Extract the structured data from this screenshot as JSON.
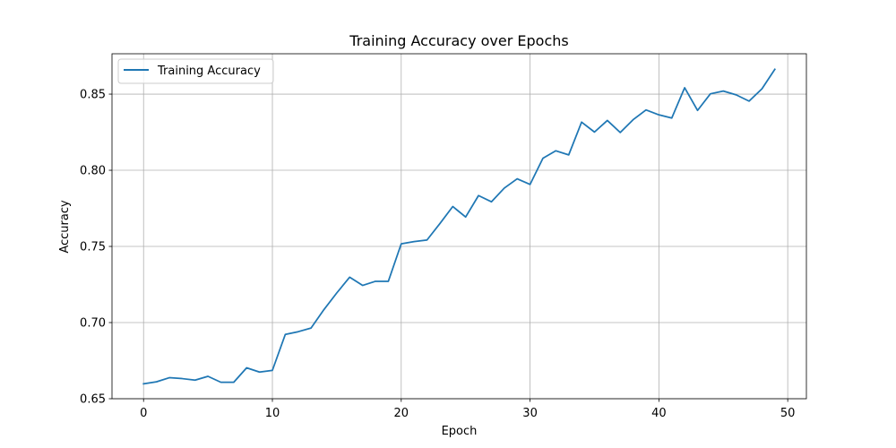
{
  "chart_data": {
    "type": "line",
    "title": "Training Accuracy over Epochs",
    "xlabel": "Epoch",
    "ylabel": "Accuracy",
    "xlim": [
      -2.45,
      51.45
    ],
    "ylim": [
      0.65,
      0.8765
    ],
    "xticks": [
      0,
      10,
      20,
      30,
      40,
      50
    ],
    "yticks": [
      0.65,
      0.7,
      0.75,
      0.8,
      0.85
    ],
    "xtick_labels": [
      "0",
      "10",
      "20",
      "30",
      "40",
      "50"
    ],
    "ytick_labels": [
      "0.65",
      "0.70",
      "0.75",
      "0.80",
      "0.85"
    ],
    "grid": true,
    "legend_position": "top-left",
    "colors": {
      "line": "#1f77b4",
      "grid": "#b0b0b0",
      "axes": "#000000"
    },
    "series": [
      {
        "name": "Training Accuracy",
        "x": [
          0,
          1,
          2,
          3,
          4,
          5,
          6,
          7,
          8,
          9,
          10,
          11,
          12,
          13,
          14,
          15,
          16,
          17,
          18,
          19,
          20,
          21,
          22,
          23,
          24,
          25,
          26,
          27,
          28,
          29,
          30,
          31,
          32,
          33,
          34,
          35,
          36,
          37,
          38,
          39,
          40,
          41,
          42,
          43,
          44,
          45,
          46,
          47,
          48,
          49
        ],
        "y": [
          0.6598,
          0.6611,
          0.6638,
          0.6632,
          0.6622,
          0.6647,
          0.6608,
          0.6608,
          0.6703,
          0.6675,
          0.6686,
          0.6922,
          0.694,
          0.6964,
          0.7085,
          0.7195,
          0.7298,
          0.7244,
          0.7271,
          0.7271,
          0.7517,
          0.7532,
          0.7542,
          0.765,
          0.7762,
          0.7693,
          0.7834,
          0.7793,
          0.7883,
          0.7944,
          0.7907,
          0.8079,
          0.8128,
          0.8101,
          0.8316,
          0.8251,
          0.8327,
          0.8248,
          0.8332,
          0.8396,
          0.8364,
          0.8343,
          0.8542,
          0.8393,
          0.8502,
          0.852,
          0.8495,
          0.8454,
          0.8535,
          0.8663
        ]
      }
    ]
  }
}
